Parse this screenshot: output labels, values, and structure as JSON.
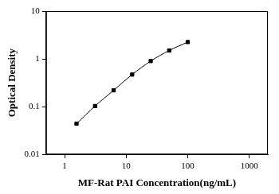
{
  "chart_data": {
    "type": "line",
    "x_label": "MF-Rat PAI Concentration(ng/mL)",
    "y_label": "Optical Density",
    "x": [
      1.56,
      3.12,
      6.25,
      12.5,
      25,
      50,
      100
    ],
    "values": [
      0.044,
      0.103,
      0.22,
      0.47,
      0.9,
      1.5,
      2.25
    ],
    "color": "#000000",
    "marker": "square",
    "line_style": "solid",
    "log": true,
    "xlim": [
      0.5,
      2000
    ],
    "xticks": [
      1,
      10,
      100,
      1000
    ],
    "ylim": [
      0.01,
      10
    ],
    "yticks": [
      0.01,
      0.1,
      1,
      10
    ],
    "grid": false
  }
}
